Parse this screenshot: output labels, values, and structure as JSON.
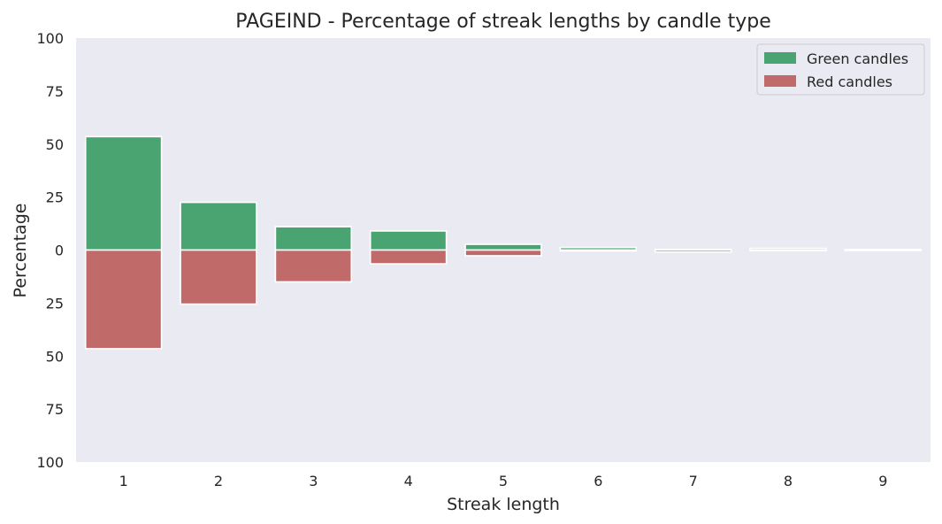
{
  "chart_data": {
    "type": "bar",
    "title": "PAGEIND - Percentage of streak lengths by candle type",
    "xlabel": "Streak length",
    "ylabel": "Percentage",
    "categories": [
      "1",
      "2",
      "3",
      "4",
      "5",
      "6",
      "7",
      "8",
      "9"
    ],
    "series": [
      {
        "name": "Green candles",
        "color": "#4aa472",
        "direction": "up",
        "values": [
          53.5,
          22.5,
          11.0,
          9.0,
          2.7,
          1.2,
          0.3,
          0.8,
          0.3
        ]
      },
      {
        "name": "Red candles",
        "color": "#c06a6a",
        "direction": "down",
        "values": [
          46.5,
          25.5,
          15.0,
          6.5,
          2.7,
          0.4,
          0.9,
          0.2,
          0.1
        ]
      }
    ],
    "ylim": [
      -100,
      100
    ],
    "yticks": [
      100,
      75,
      50,
      25,
      0,
      -25,
      -50,
      -75,
      -100
    ],
    "ytick_labels": [
      "100",
      "75",
      "50",
      "25",
      "0",
      "25",
      "50",
      "75",
      "100"
    ],
    "grid": false,
    "legend_position": "top-right",
    "background": "#eaeaf2"
  }
}
